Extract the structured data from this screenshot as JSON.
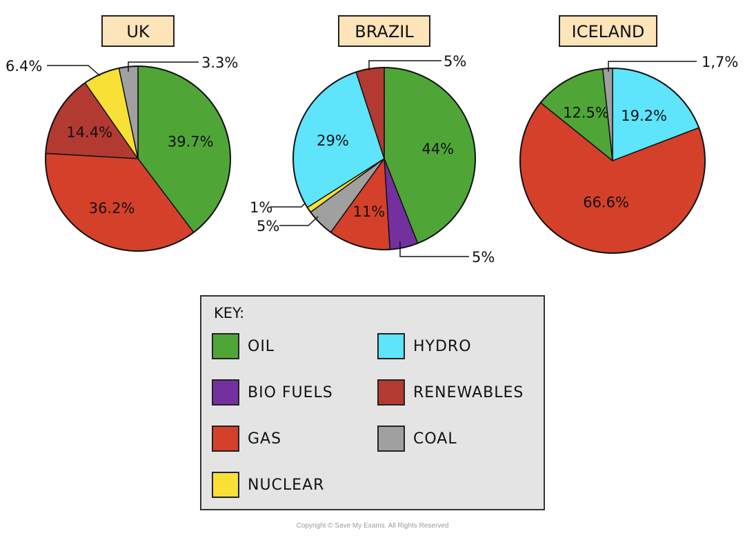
{
  "chart_data": [
    {
      "type": "pie",
      "title": "UK",
      "slices": [
        {
          "category": "OIL",
          "value": 39.7,
          "label": "39.7%"
        },
        {
          "category": "GAS",
          "value": 36.2,
          "label": "36.2%"
        },
        {
          "category": "RENEWABLES",
          "value": 14.4,
          "label": "14.4%"
        },
        {
          "category": "NUCLEAR",
          "value": 6.4,
          "label": "6.4%"
        },
        {
          "category": "COAL",
          "value": 3.3,
          "label": "3.3%"
        }
      ]
    },
    {
      "type": "pie",
      "title": "BRAZIL",
      "slices": [
        {
          "category": "OIL",
          "value": 44,
          "label": "44%"
        },
        {
          "category": "BIO FUELS",
          "value": 5,
          "label": "5%"
        },
        {
          "category": "GAS",
          "value": 11,
          "label": "11%"
        },
        {
          "category": "COAL",
          "value": 5,
          "label": "5%"
        },
        {
          "category": "NUCLEAR",
          "value": 1,
          "label": "1%"
        },
        {
          "category": "HYDRO",
          "value": 29,
          "label": "29%"
        },
        {
          "category": "RENEWABLES",
          "value": 5,
          "label": "5%"
        }
      ]
    },
    {
      "type": "pie",
      "title": "ICELAND",
      "slices": [
        {
          "category": "HYDRO",
          "value": 19.2,
          "label": "19.2%"
        },
        {
          "category": "GAS",
          "value": 66.6,
          "label": "66.6%"
        },
        {
          "category": "OIL",
          "value": 12.5,
          "label": "12.5%"
        },
        {
          "category": "COAL",
          "value": 1.7,
          "label": "1,7%"
        }
      ]
    }
  ],
  "colors": {
    "OIL": "#4fa636",
    "GAS": "#d5402a",
    "RENEWABLES": "#b33a31",
    "NUCLEAR": "#f8e036",
    "COAL": "#a0a0a0",
    "HYDRO": "#5ee4fb",
    "BIO FUELS": "#7530a0"
  },
  "key": {
    "title": "KEY:",
    "items": [
      "OIL",
      "HYDRO",
      "BIO FUELS",
      "RENEWABLES",
      "GAS",
      "COAL",
      "NUCLEAR"
    ]
  },
  "copyright": "Copyright © Save My Exams. All Rights Reserved"
}
